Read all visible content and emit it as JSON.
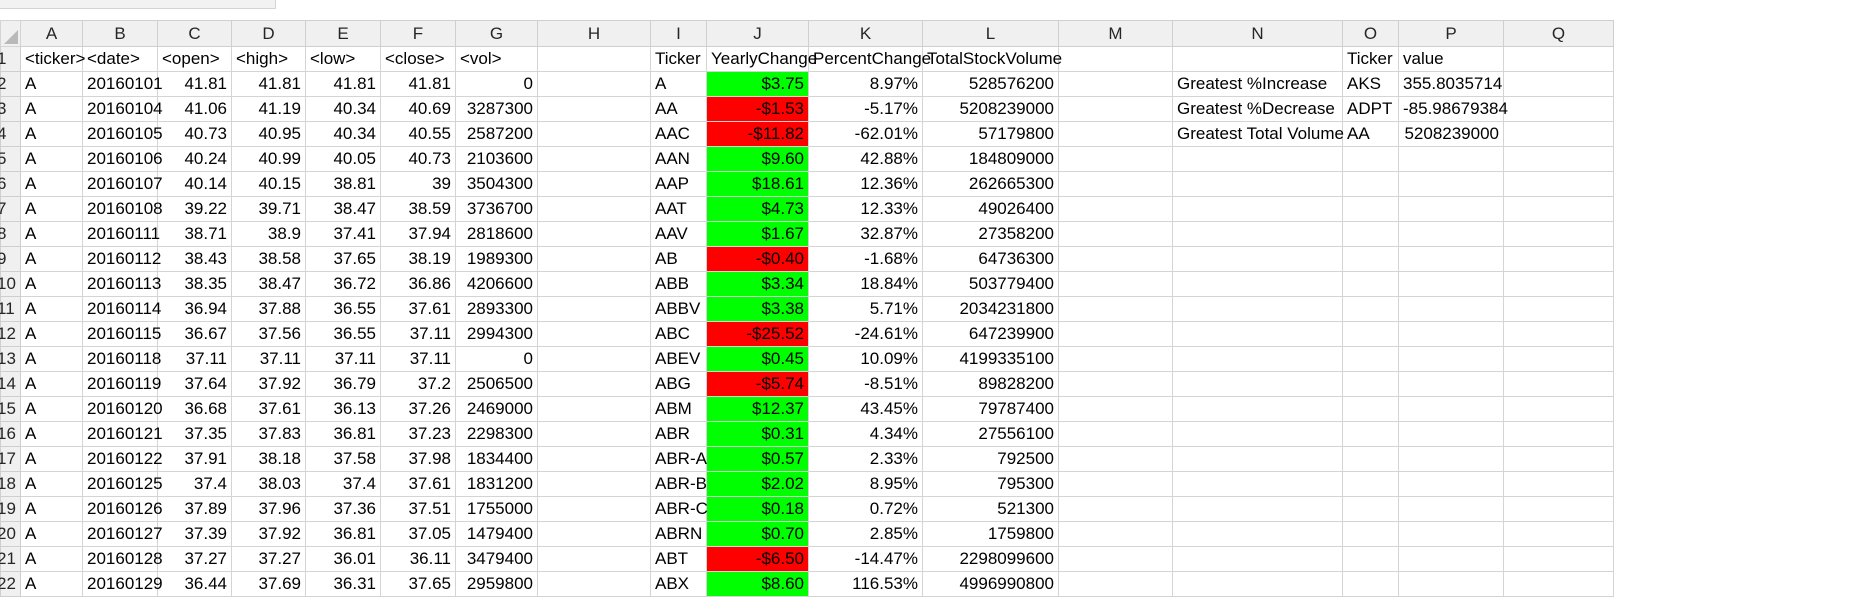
{
  "columns": [
    "A",
    "B",
    "C",
    "D",
    "E",
    "F",
    "G",
    "H",
    "I",
    "J",
    "K",
    "L",
    "M",
    "N",
    "O",
    "P",
    "Q"
  ],
  "colors": {
    "positive_fill": "#00ff00",
    "negative_fill": "#ff0000",
    "header_fill": "#f0f0f0",
    "gridline": "#d4d4d4"
  },
  "rows": [
    {
      "num": "1",
      "cells": [
        "<ticker>",
        "<date>",
        "<open>",
        "<high>",
        "<low>",
        "<close>",
        "<vol>",
        "",
        "Ticker",
        "YearlyChange",
        "PercentChange",
        "TotalStockVolume",
        "",
        "",
        "Ticker",
        "value",
        ""
      ]
    },
    {
      "num": "2",
      "cells": [
        "A",
        "20160101",
        "41.81",
        "41.81",
        "41.81",
        "41.81",
        "0",
        "",
        "A",
        "$3.75",
        "8.97%",
        "528576200",
        "",
        "Greatest %Increase",
        "AKS",
        "355.8035714",
        ""
      ]
    },
    {
      "num": "3",
      "cells": [
        "A",
        "20160104",
        "41.06",
        "41.19",
        "40.34",
        "40.69",
        "3287300",
        "",
        "AA",
        "-$1.53",
        "-5.17%",
        "5208239000",
        "",
        "Greatest %Decrease",
        "ADPT",
        "-85.98679384",
        ""
      ]
    },
    {
      "num": "4",
      "cells": [
        "A",
        "20160105",
        "40.73",
        "40.95",
        "40.34",
        "40.55",
        "2587200",
        "",
        "AAC",
        "-$11.82",
        "-62.01%",
        "57179800",
        "",
        "Greatest Total Volume",
        "AA",
        "5208239000",
        ""
      ]
    },
    {
      "num": "5",
      "cells": [
        "A",
        "20160106",
        "40.24",
        "40.99",
        "40.05",
        "40.73",
        "2103600",
        "",
        "AAN",
        "$9.60",
        "42.88%",
        "184809000",
        "",
        "",
        "",
        "",
        ""
      ]
    },
    {
      "num": "6",
      "cells": [
        "A",
        "20160107",
        "40.14",
        "40.15",
        "38.81",
        "39",
        "3504300",
        "",
        "AAP",
        "$18.61",
        "12.36%",
        "262665300",
        "",
        "",
        "",
        "",
        ""
      ]
    },
    {
      "num": "7",
      "cells": [
        "A",
        "20160108",
        "39.22",
        "39.71",
        "38.47",
        "38.59",
        "3736700",
        "",
        "AAT",
        "$4.73",
        "12.33%",
        "49026400",
        "",
        "",
        "",
        "",
        ""
      ]
    },
    {
      "num": "8",
      "cells": [
        "A",
        "20160111",
        "38.71",
        "38.9",
        "37.41",
        "37.94",
        "2818600",
        "",
        "AAV",
        "$1.67",
        "32.87%",
        "27358200",
        "",
        "",
        "",
        "",
        ""
      ]
    },
    {
      "num": "9",
      "cells": [
        "A",
        "20160112",
        "38.43",
        "38.58",
        "37.65",
        "38.19",
        "1989300",
        "",
        "AB",
        "-$0.40",
        "-1.68%",
        "64736300",
        "",
        "",
        "",
        "",
        ""
      ]
    },
    {
      "num": "10",
      "cells": [
        "A",
        "20160113",
        "38.35",
        "38.47",
        "36.72",
        "36.86",
        "4206600",
        "",
        "ABB",
        "$3.34",
        "18.84%",
        "503779400",
        "",
        "",
        "",
        "",
        ""
      ]
    },
    {
      "num": "11",
      "cells": [
        "A",
        "20160114",
        "36.94",
        "37.88",
        "36.55",
        "37.61",
        "2893300",
        "",
        "ABBV",
        "$3.38",
        "5.71%",
        "2034231800",
        "",
        "",
        "",
        "",
        ""
      ]
    },
    {
      "num": "12",
      "cells": [
        "A",
        "20160115",
        "36.67",
        "37.56",
        "36.55",
        "37.11",
        "2994300",
        "",
        "ABC",
        "-$25.52",
        "-24.61%",
        "647239900",
        "",
        "",
        "",
        "",
        ""
      ]
    },
    {
      "num": "13",
      "cells": [
        "A",
        "20160118",
        "37.11",
        "37.11",
        "37.11",
        "37.11",
        "0",
        "",
        "ABEV",
        "$0.45",
        "10.09%",
        "4199335100",
        "",
        "",
        "",
        "",
        ""
      ]
    },
    {
      "num": "14",
      "cells": [
        "A",
        "20160119",
        "37.64",
        "37.92",
        "36.79",
        "37.2",
        "2506500",
        "",
        "ABG",
        "-$5.74",
        "-8.51%",
        "89828200",
        "",
        "",
        "",
        "",
        ""
      ]
    },
    {
      "num": "15",
      "cells": [
        "A",
        "20160120",
        "36.68",
        "37.61",
        "36.13",
        "37.26",
        "2469000",
        "",
        "ABM",
        "$12.37",
        "43.45%",
        "79787400",
        "",
        "",
        "",
        "",
        ""
      ]
    },
    {
      "num": "16",
      "cells": [
        "A",
        "20160121",
        "37.35",
        "37.83",
        "36.81",
        "37.23",
        "2298300",
        "",
        "ABR",
        "$0.31",
        "4.34%",
        "27556100",
        "",
        "",
        "",
        "",
        ""
      ]
    },
    {
      "num": "17",
      "cells": [
        "A",
        "20160122",
        "37.91",
        "38.18",
        "37.58",
        "37.98",
        "1834400",
        "",
        "ABR-A",
        "$0.57",
        "2.33%",
        "792500",
        "",
        "",
        "",
        "",
        ""
      ]
    },
    {
      "num": "18",
      "cells": [
        "A",
        "20160125",
        "37.4",
        "38.03",
        "37.4",
        "37.61",
        "1831200",
        "",
        "ABR-B",
        "$2.02",
        "8.95%",
        "795300",
        "",
        "",
        "",
        "",
        ""
      ]
    },
    {
      "num": "19",
      "cells": [
        "A",
        "20160126",
        "37.89",
        "37.96",
        "37.36",
        "37.51",
        "1755000",
        "",
        "ABR-C",
        "$0.18",
        "0.72%",
        "521300",
        "",
        "",
        "",
        "",
        ""
      ]
    },
    {
      "num": "20",
      "cells": [
        "A",
        "20160127",
        "37.39",
        "37.92",
        "36.81",
        "37.05",
        "1479400",
        "",
        "ABRN",
        "$0.70",
        "2.85%",
        "1759800",
        "",
        "",
        "",
        "",
        ""
      ]
    },
    {
      "num": "21",
      "cells": [
        "A",
        "20160128",
        "37.27",
        "37.27",
        "36.01",
        "36.11",
        "3479400",
        "",
        "ABT",
        "-$6.50",
        "-14.47%",
        "2298099600",
        "",
        "",
        "",
        "",
        ""
      ]
    },
    {
      "num": "22",
      "cells": [
        "A",
        "20160129",
        "36.44",
        "37.69",
        "36.31",
        "37.65",
        "2959800",
        "",
        "ABX",
        "$8.60",
        "116.53%",
        "4996990800",
        "",
        "",
        "",
        "",
        ""
      ]
    }
  ]
}
